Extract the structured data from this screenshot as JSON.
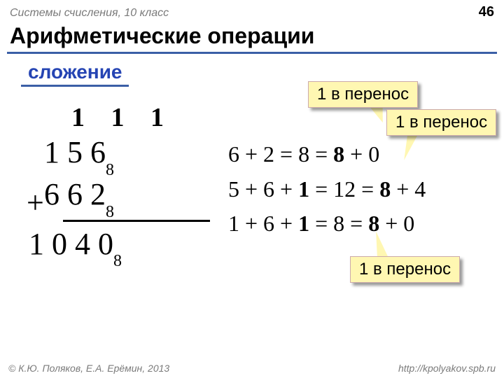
{
  "header": {
    "left": "Системы счисления, 10 класс",
    "page": "46"
  },
  "title": "Арифметические операции",
  "section": "сложение",
  "carry": "1 1 1",
  "addition": {
    "row1_digits": "1 5 6",
    "row2_digits": "6 6 2",
    "result_digits": "1 0 4 0",
    "subscript": "8",
    "plus": "+"
  },
  "explain": {
    "l1a": "6 + 2 = 8 = ",
    "l1b": "8",
    "l1c": " + 0",
    "l2a": "5 + 6 + ",
    "l2b": "1",
    "l2c": " = 12 = ",
    "l2d": "8",
    "l2e": " + 4",
    "l3a": "1 + 6 + ",
    "l3b": "1",
    "l3c": " = 8 = ",
    "l3d": "8",
    "l3e": " + 0"
  },
  "callouts": {
    "c1": "1 в перенос",
    "c2": "1 в перенос",
    "c3": "1 в перенос"
  },
  "footer": {
    "left": "© К.Ю. Поляков, Е.А. Ерёмин, 2013",
    "right": "http://kpolyakov.spb.ru"
  },
  "colors": {
    "accent": "#3b5fa6",
    "callout_bg": "#fff7b2"
  }
}
